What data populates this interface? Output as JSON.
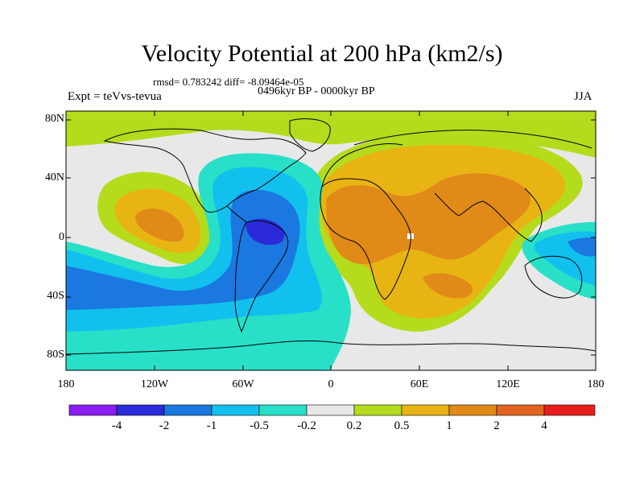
{
  "title": "Velocity Potential at 200 hPa (km2/s)",
  "stats": "rmsd= 0.783242 diff= -8.09464e-05",
  "period": "0496kyr BP - 0000kyr BP",
  "experiment": "Expt = teVvs-tevua",
  "season": "JJA",
  "axes": {
    "lat_labels": [
      "80N",
      "40N",
      "0",
      "40S",
      "80S"
    ],
    "lat_values": [
      80,
      40,
      0,
      -40,
      -80
    ],
    "lon_labels": [
      "180",
      "120W",
      "60W",
      "0",
      "60E",
      "120E",
      "180"
    ],
    "lon_values": [
      -180,
      -120,
      -60,
      0,
      60,
      120,
      180
    ]
  },
  "colorbar": {
    "labels": [
      "-4",
      "-2",
      "-1",
      "-0.5",
      "-0.2",
      "0.2",
      "0.5",
      "1",
      "2",
      "4"
    ],
    "colors": [
      "#8a1ef0",
      "#2a2ad8",
      "#1a78e0",
      "#12c0ee",
      "#28e0c8",
      "#e8e8e8",
      "#b4dc1c",
      "#e8b414",
      "#e08a18",
      "#e06420",
      "#e81e1e"
    ]
  },
  "chart_data": {
    "type": "contour-map",
    "variable": "velocity potential anomaly at 200 hPa",
    "units": "km2/s",
    "levels": [
      -4,
      -2,
      -1,
      -0.5,
      -0.2,
      0.2,
      0.5,
      1,
      2,
      4
    ],
    "lon_range": [
      -180,
      180
    ],
    "lat_range": [
      -90,
      90
    ]
  }
}
